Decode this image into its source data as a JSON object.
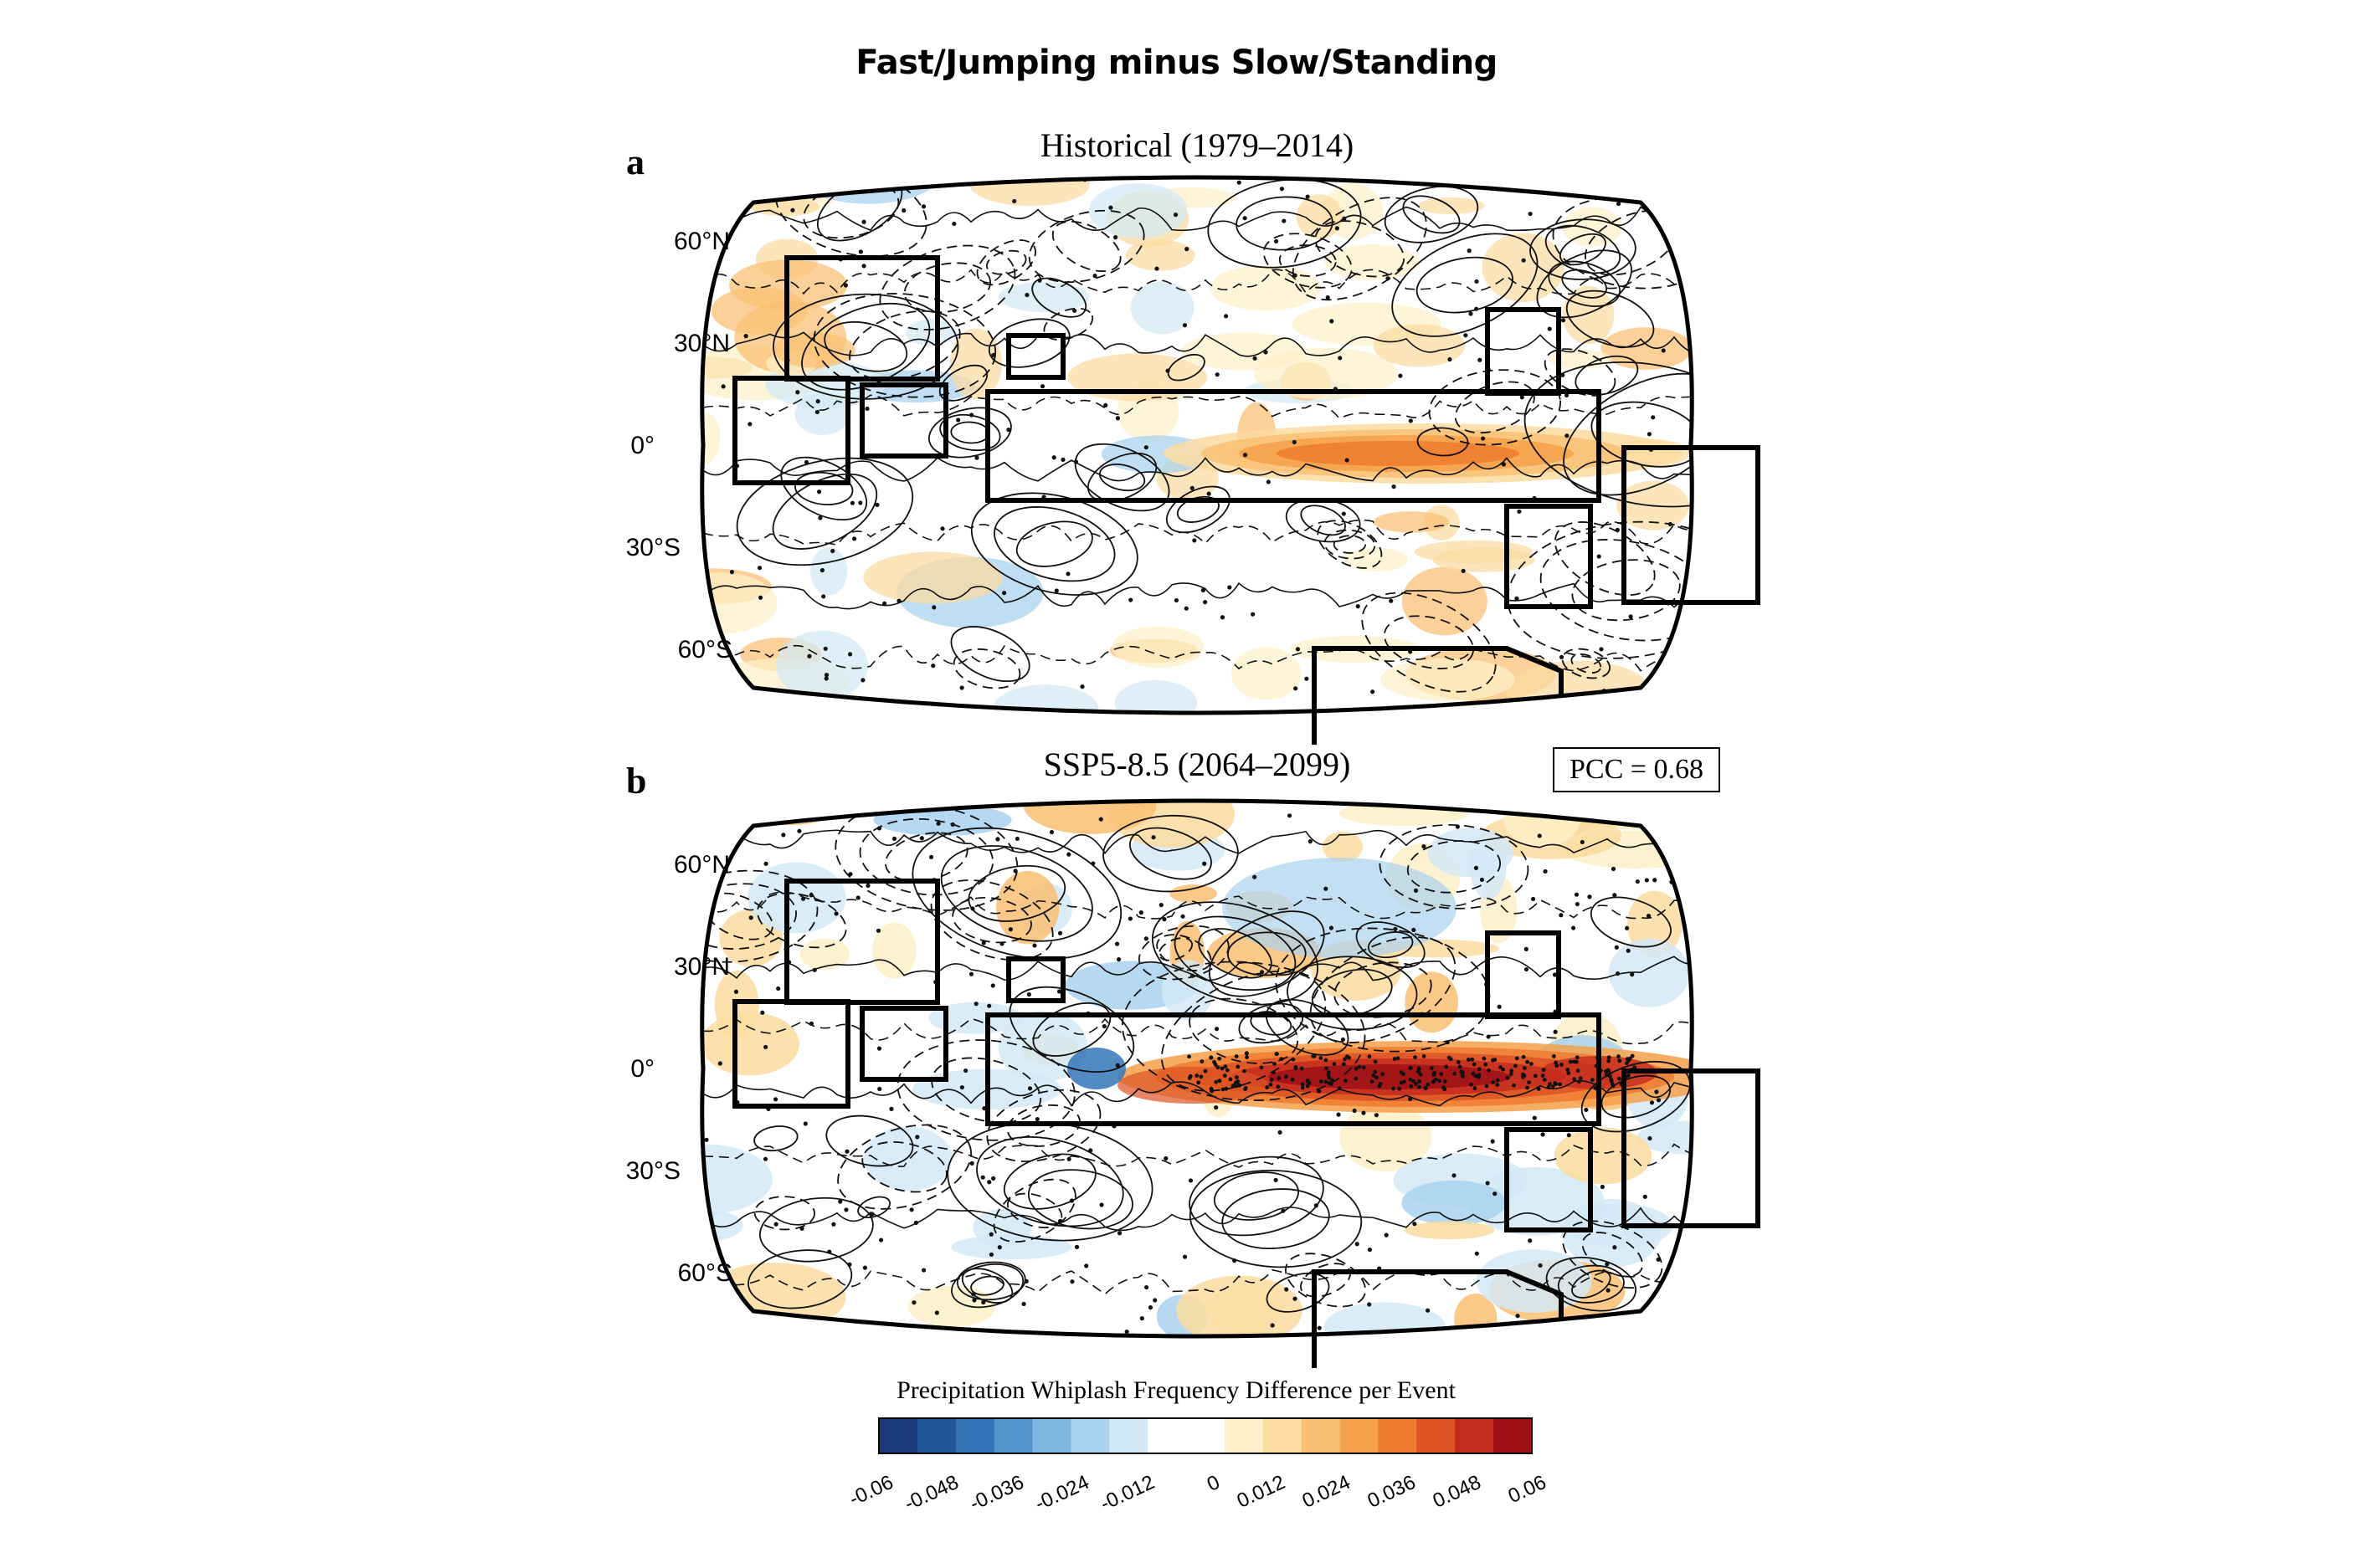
{
  "figure": {
    "title": "Fast/Jumping minus Slow/Standing",
    "panels": [
      {
        "letter": "a",
        "title": "Historical (1979–2014)",
        "pcc": null,
        "lat_labels": [
          "60°N",
          "30°N",
          "0°",
          "30°S",
          "60°S"
        ],
        "intensity": 0.6
      },
      {
        "letter": "b",
        "title": "SSP5-8.5 (2064–2099)",
        "pcc": "PCC = 0.68",
        "lat_labels": [
          "60°N",
          "30°N",
          "0°",
          "30°S",
          "60°S"
        ],
        "intensity": 1.0
      }
    ],
    "colorbar": {
      "title": "Precipitation Whiplash Frequency Difference per Event",
      "ticks": [
        "-0.06",
        "-0.048",
        "-0.036",
        "-0.024",
        "-0.012",
        "0",
        "0.012",
        "0.024",
        "0.036",
        "0.048",
        "0.06"
      ],
      "colors": [
        "#1d3a7a",
        "#24569a",
        "#3475b8",
        "#5594cc",
        "#7fb6de",
        "#a9d2ee",
        "#d3e9f6",
        "#ffffff",
        "#ffffff",
        "#fdf0c8",
        "#fbdca0",
        "#f9c073",
        "#f5a04a",
        "#ee7b2f",
        "#dd5324",
        "#c42b1f",
        "#9e1117"
      ]
    }
  },
  "map": {
    "projection": "Robinson-like",
    "stippling": "significant",
    "contours": "solid positive, dashed negative"
  }
}
